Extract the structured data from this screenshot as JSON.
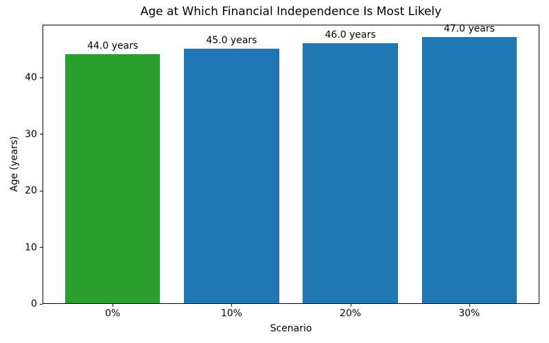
{
  "chart_data": {
    "type": "bar",
    "title": "Age at Which Financial Independence Is Most Likely",
    "xlabel": "Scenario",
    "ylabel": "Age (years)",
    "categories": [
      "0%",
      "10%",
      "20%",
      "30%"
    ],
    "values": [
      44.0,
      45.0,
      46.0,
      47.0
    ],
    "bar_labels": [
      "44.0 years",
      "45.0 years",
      "46.0 years",
      "47.0 years"
    ],
    "bar_colors": [
      "#2ca02c",
      "#1f77b4",
      "#1f77b4",
      "#1f77b4"
    ],
    "highlight_color": "#2ca02c",
    "default_color": "#1f77b4",
    "ylim": [
      0,
      49.35
    ],
    "yticks": [
      0,
      10,
      20,
      30,
      40
    ],
    "bar_width_fraction": 0.8,
    "grid": false,
    "legend": "none",
    "spines": "box",
    "background_color": "#ffffff",
    "text_color": "#000000"
  }
}
